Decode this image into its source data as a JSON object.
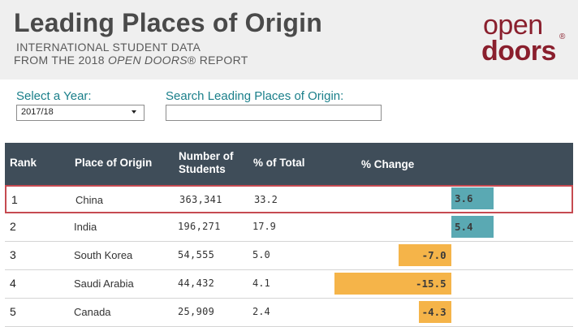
{
  "header": {
    "title": "Leading Places of Origin",
    "subtitle_1": "INTERNATIONAL STUDENT DATA",
    "subtitle_2_pre": "FROM THE 2018 ",
    "subtitle_2_em": "OPEN DOORS",
    "subtitle_2_post": "® REPORT"
  },
  "logo": {
    "top": "open",
    "bottom": "doors",
    "reg": "®"
  },
  "controls": {
    "year_label": "Select a Year:",
    "year_value": "2017/18",
    "search_label": "Search Leading Places of Origin:",
    "search_value": ""
  },
  "table": {
    "columns": {
      "rank": "Rank",
      "place": "Place of Origin",
      "number": "Number of Students",
      "pct_total": "% of Total",
      "pct_change": "% Change"
    },
    "rows": [
      {
        "rank": "1",
        "place": "China",
        "students": "363,341",
        "pct_total": "33.2",
        "pct_change": "3.6",
        "change_value": 3.6,
        "selected": true
      },
      {
        "rank": "2",
        "place": "India",
        "students": "196,271",
        "pct_total": "17.9",
        "pct_change": "5.4",
        "change_value": 5.4,
        "selected": false
      },
      {
        "rank": "3",
        "place": "South Korea",
        "students": "54,555",
        "pct_total": "5.0",
        "pct_change": "-7.0",
        "change_value": -7.0,
        "selected": false
      },
      {
        "rank": "4",
        "place": "Saudi Arabia",
        "students": "44,432",
        "pct_total": "4.1",
        "pct_change": "-15.5",
        "change_value": -15.5,
        "selected": false
      },
      {
        "rank": "5",
        "place": "Canada",
        "students": "25,909",
        "pct_total": "2.4",
        "pct_change": "-4.3",
        "change_value": -4.3,
        "selected": false
      }
    ]
  },
  "colors": {
    "positive_bar": "#5aa9b3",
    "negative_bar": "#f5b449",
    "header_bg": "#3f4d59",
    "accent_label": "#1a7f8a",
    "brand": "#8a1f2d",
    "selected_border": "#c64a51"
  }
}
